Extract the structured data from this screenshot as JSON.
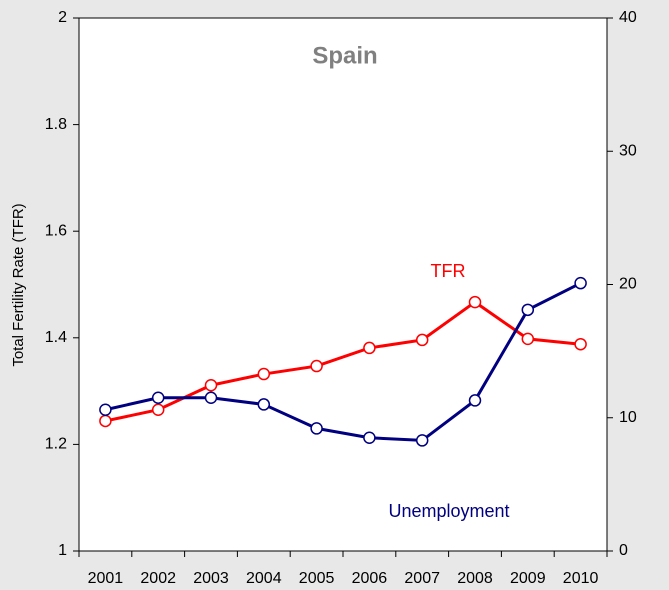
{
  "chart_data": {
    "type": "line",
    "title": "Spain",
    "y_label": "Total Fertility Rate (TFR)",
    "categories": [
      "2001",
      "2002",
      "2003",
      "2004",
      "2005",
      "2006",
      "2007",
      "2008",
      "2009",
      "2010"
    ],
    "ylim": [
      1,
      2
    ],
    "yticks": [
      1,
      1.2,
      1.4,
      1.6,
      1.8,
      2
    ],
    "y2lim": [
      0,
      40
    ],
    "y2ticks": [
      0,
      10,
      20,
      30,
      40
    ],
    "series": [
      {
        "name": "TFR",
        "color": "#ff0000",
        "values": [
          1.244,
          1.265,
          1.311,
          1.332,
          1.347,
          1.381,
          1.396,
          1.467,
          1.398,
          1.388
        ]
      },
      {
        "name": "Unemployment",
        "color": "#000080",
        "axis": "y2",
        "values": [
          10.6,
          11.5,
          11.5,
          11.0,
          9.2,
          8.5,
          8.3,
          11.3,
          18.1,
          20.1
        ]
      }
    ]
  }
}
